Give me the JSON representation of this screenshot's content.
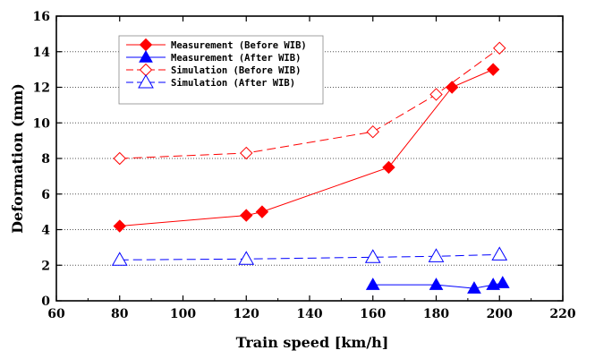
{
  "chart_data": {
    "type": "line",
    "xlabel": "Train speed [km/h]",
    "ylabel": "Deformation (mm)",
    "xlim": [
      60,
      220
    ],
    "ylim": [
      0,
      16
    ],
    "x_ticks": [
      60,
      80,
      100,
      120,
      140,
      160,
      180,
      200,
      220
    ],
    "y_ticks": [
      0,
      2,
      4,
      6,
      8,
      10,
      12,
      14,
      16
    ],
    "grid": "horizontal dotted",
    "legend_position": "top-left",
    "series": [
      {
        "name": "Measurement (Before WIB)",
        "color": "#ff0000",
        "marker": "filled-diamond",
        "line": "solid",
        "points": [
          [
            80,
            4.2
          ],
          [
            120,
            4.8
          ],
          [
            125,
            5.0
          ],
          [
            165,
            7.5
          ],
          [
            185,
            12.0
          ],
          [
            198,
            13.0
          ]
        ]
      },
      {
        "name": "Measurement (After WIB)",
        "color": "#0000ff",
        "marker": "filled-triangle",
        "line": "solid",
        "points": [
          [
            160,
            0.9
          ],
          [
            180,
            0.9
          ],
          [
            192,
            0.7
          ],
          [
            198,
            0.9
          ],
          [
            201,
            1.0
          ]
        ]
      },
      {
        "name": "Simulation (Before WIB)",
        "color": "#ff0000",
        "marker": "open-diamond",
        "line": "dashed",
        "points": [
          [
            80,
            8.0
          ],
          [
            120,
            8.3
          ],
          [
            160,
            9.5
          ],
          [
            180,
            11.6
          ],
          [
            200,
            14.2
          ]
        ]
      },
      {
        "name": "Simulation (After WIB)",
        "color": "#0000ff",
        "marker": "open-triangle",
        "line": "dashed",
        "points": [
          [
            80,
            2.3
          ],
          [
            120,
            2.35
          ],
          [
            160,
            2.45
          ],
          [
            180,
            2.5
          ],
          [
            200,
            2.6
          ]
        ]
      }
    ]
  }
}
